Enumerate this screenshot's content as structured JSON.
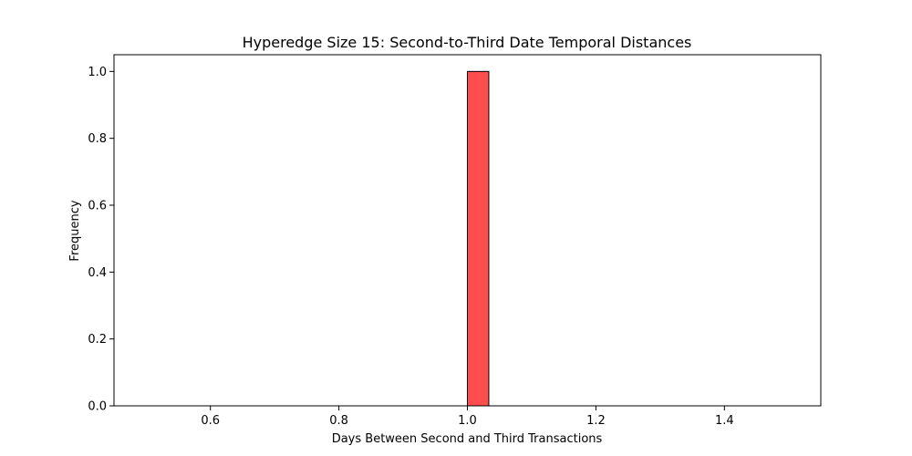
{
  "chart_data": {
    "type": "bar",
    "title": "Hyperedge Size 15: Second-to-Third Date Temporal Distances",
    "xlabel": "Days Between Second and Third Transactions",
    "ylabel": "Frequency",
    "xlim": [
      0.45,
      1.55
    ],
    "ylim": [
      0.0,
      1.05
    ],
    "x_ticks": [
      0.6,
      0.8,
      1.0,
      1.2,
      1.4
    ],
    "x_tick_labels": [
      "0.6",
      "0.8",
      "1.0",
      "1.2",
      "1.4"
    ],
    "y_ticks": [
      0.0,
      0.2,
      0.4,
      0.6,
      0.8,
      1.0
    ],
    "y_tick_labels": [
      "0.0",
      "0.2",
      "0.4",
      "0.6",
      "0.8",
      "1.0"
    ],
    "bin_range": [
      0.5,
      1.5
    ],
    "bin_count": 30,
    "bins": [
      {
        "x_start": 1.0,
        "x_end": 1.0333,
        "value": 1
      }
    ],
    "grid": false,
    "colors": {
      "bar_fill": "#ff4c4c",
      "bar_edge": "#000000",
      "axes": "#000000",
      "background": "#ffffff"
    }
  }
}
